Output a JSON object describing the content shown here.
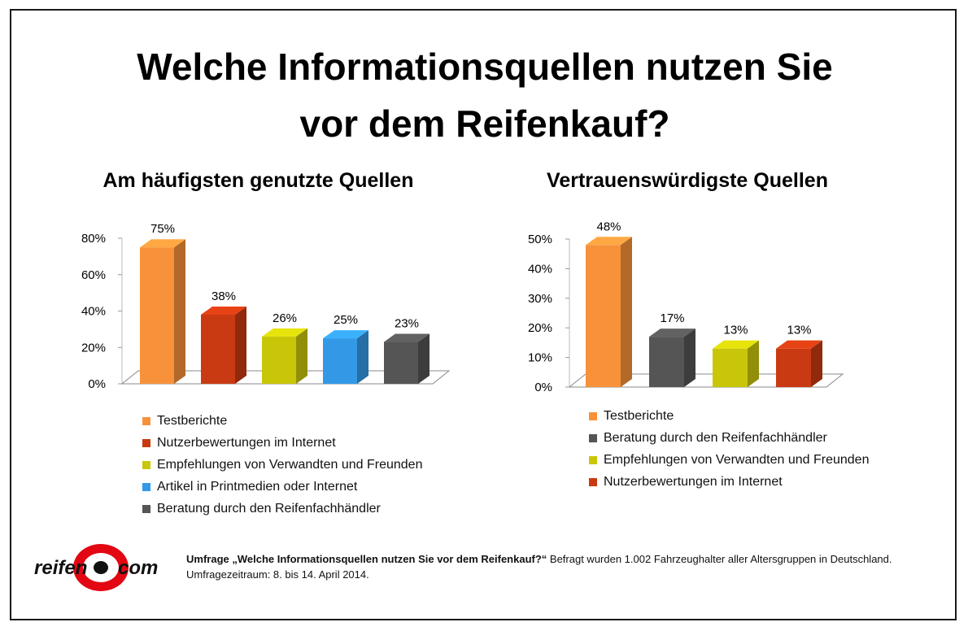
{
  "title_line1": "Welche Informationsquellen nutzen Sie",
  "title_line2": "vor dem Reifenkauf?",
  "colors": {
    "orange": "#f7923a",
    "red": "#c93a12",
    "yellow": "#c9c60a",
    "blue": "#3399e6",
    "gray": "#555555"
  },
  "chart_data": [
    {
      "type": "bar",
      "title": "Am häufigsten genutzte Quellen",
      "categories": [
        "Testberichte",
        "Nutzerbewertungen im Internet",
        "Empfehlungen von Verwandten und Freunden",
        "Artikel in Printmedien oder Internet",
        "Beratung durch den Reifenfachhändler"
      ],
      "values": [
        75,
        38,
        26,
        25,
        23
      ],
      "value_labels": [
        "75%",
        "38%",
        "26%",
        "25%",
        "23%"
      ],
      "colors": [
        "#f7923a",
        "#c93a12",
        "#c9c60a",
        "#3399e6",
        "#555555"
      ],
      "ylim": [
        0,
        80
      ],
      "yticks": [
        "0%",
        "20%",
        "40%",
        "60%",
        "80%"
      ],
      "ytick_values": [
        0,
        20,
        40,
        60,
        80
      ],
      "legend": "bottom"
    },
    {
      "type": "bar",
      "title": "Vertrauenswürdigste Quellen",
      "categories": [
        "Testberichte",
        "Beratung durch den Reifenfachhändler",
        "Empfehlungen von Verwandten und Freunden",
        "Nutzerbewertungen im Internet"
      ],
      "values": [
        48,
        17,
        13,
        13
      ],
      "value_labels": [
        "48%",
        "17%",
        "13%",
        "13%"
      ],
      "colors": [
        "#f7923a",
        "#555555",
        "#c9c60a",
        "#c93a12"
      ],
      "ylim": [
        0,
        50
      ],
      "yticks": [
        "0%",
        "10%",
        "20%",
        "30%",
        "40%",
        "50%"
      ],
      "ytick_values": [
        0,
        10,
        20,
        30,
        40,
        50
      ],
      "legend": "bottom"
    }
  ],
  "footer": {
    "bold": "Umfrage „Welche Informationsquellen nutzen Sie vor dem Reifenkauf?“",
    "text": " Befragt wurden 1.002 Fahrzeughalter aller Altersgruppen in Deutschland. Umfragezeitraum: 8. bis 14. April 2014."
  },
  "logo": {
    "left": "reifen",
    "right": "com"
  }
}
